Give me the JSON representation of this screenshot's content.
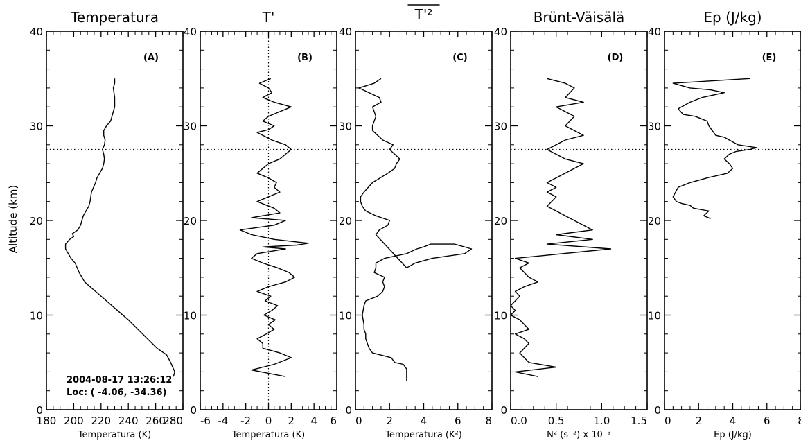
{
  "figure": {
    "ylabel": "Altitude (km)",
    "reference_altitude_km": 27.5
  },
  "chart_data": [
    {
      "type": "line",
      "title": "Temperatura",
      "panel_label": "(A)",
      "xlabel": "Temperatura (K)",
      "xlim": [
        180,
        280
      ],
      "xticks": [
        180,
        200,
        220,
        240,
        260,
        280
      ],
      "ylim": [
        0,
        40
      ],
      "yticks": [
        0,
        10,
        20,
        30,
        40
      ],
      "annotation": [
        "2004-08-17 13:26:12",
        "Loc: ( -4.06, -34.36)"
      ],
      "series": [
        {
          "x": [
            273.0,
            274.0,
            271.0,
            268.0,
            261.0,
            254.0,
            247.0,
            240.0,
            232.0,
            224.0,
            216.0,
            208.0,
            204.0,
            201.0,
            198.0,
            196.0,
            194.0,
            194.0,
            197.0,
            200.0,
            199.0,
            203.0,
            205.0,
            206.0,
            207.0,
            209.0,
            211.0,
            212.0,
            212.5,
            213.0,
            214.5,
            216.0,
            217.0,
            219.0,
            221.0,
            222.0,
            222.5,
            222.0,
            221.0,
            222.5,
            223.0,
            222.0,
            222.0,
            224.0,
            227.0,
            228.0,
            229.0,
            230.0,
            230.0,
            229.0,
            230.0,
            230.0
          ],
          "y": [
            3.5,
            4.0,
            5.0,
            5.8,
            6.5,
            7.5,
            8.5,
            9.5,
            10.5,
            11.5,
            12.5,
            13.5,
            14.5,
            15.5,
            16.0,
            16.5,
            17.0,
            17.5,
            18.0,
            18.3,
            18.6,
            19.0,
            19.5,
            20.0,
            20.5,
            21.0,
            21.5,
            22.0,
            22.5,
            23.0,
            23.5,
            24.0,
            24.5,
            25.0,
            25.5,
            26.0,
            26.5,
            27.0,
            27.5,
            28.0,
            28.5,
            29.0,
            29.5,
            30.0,
            30.5,
            31.0,
            31.5,
            32.0,
            33.0,
            34.0,
            34.5,
            35.0
          ]
        }
      ]
    },
    {
      "type": "line",
      "title": "T'",
      "panel_label": "(B)",
      "xlabel": "Temperatura (K)",
      "xlim": [
        -6,
        6
      ],
      "xticks": [
        -6,
        -4,
        -2,
        0,
        2,
        4,
        6
      ],
      "ylim": [
        0,
        40
      ],
      "yticks": [
        0,
        10,
        20,
        30,
        40
      ],
      "zero_line": true,
      "series": [
        {
          "x": [
            1.5,
            -1.5,
            0.5,
            2.0,
            1.0,
            -0.5,
            -0.5,
            -1.0,
            -0.2,
            0.5,
            0.0,
            0.6,
            -0.4,
            0.3,
            0.8,
            -0.3,
            0.2,
            -1.0,
            0.0,
            1.5,
            2.3,
            1.8,
            0.8,
            -0.5,
            -1.5,
            -1.0,
            1.5,
            -0.5,
            2.5,
            3.5,
            0.5,
            -1.5,
            -2.5,
            0.5,
            1.5,
            -1.5,
            1.0,
            0.5,
            -1.0,
            0.0,
            1.0,
            0.5,
            0.7,
            0.0,
            -1.0,
            0.0,
            1.0,
            1.5,
            2.0,
            1.5,
            0.3,
            -0.5,
            -1.0,
            0.0,
            0.5,
            -0.5,
            0.0,
            1.0,
            2.0,
            0.5,
            -0.5,
            0.3,
            0.0,
            -0.8,
            0.2
          ],
          "y": [
            3.5,
            4.2,
            4.8,
            5.5,
            6.0,
            6.5,
            7.0,
            7.5,
            8.0,
            8.5,
            9.0,
            9.5,
            10.0,
            10.5,
            11.0,
            11.5,
            12.0,
            12.5,
            13.0,
            13.5,
            14.0,
            14.5,
            15.0,
            15.5,
            16.0,
            16.5,
            17.0,
            17.2,
            17.4,
            17.6,
            18.0,
            18.5,
            19.0,
            19.5,
            20.0,
            20.3,
            20.8,
            21.3,
            22.0,
            22.5,
            23.0,
            23.5,
            24.0,
            24.5,
            25.0,
            26.0,
            26.5,
            27.0,
            27.5,
            28.0,
            28.5,
            29.0,
            29.3,
            29.6,
            30.0,
            30.5,
            31.0,
            31.5,
            32.0,
            32.5,
            33.0,
            33.5,
            34.0,
            34.5,
            35.0
          ]
        }
      ]
    },
    {
      "type": "line",
      "title": "T'²",
      "title_overline": true,
      "panel_label": "(C)",
      "xlabel": "Temperatura (K²)",
      "xlim": [
        0,
        8
      ],
      "xticks": [
        0,
        2,
        4,
        6,
        8
      ],
      "ylim": [
        0,
        40
      ],
      "yticks": [
        0,
        10,
        20,
        30,
        40
      ],
      "series": [
        {
          "x": [
            3.0,
            3.0,
            2.8,
            2.3,
            2.1,
            1.0,
            0.8,
            0.7,
            0.6,
            0.6,
            0.5,
            0.5,
            0.4,
            0.5,
            0.6,
            1.3,
            1.6,
            1.7,
            1.6,
            1.7,
            1.1,
            1.2,
            1.2,
            1.7,
            3.0,
            3.6,
            4.0,
            4.4,
            5.8,
            6.8,
            6.4,
            4.5,
            3.5,
            3.0,
            1.2,
            1.4,
            1.9,
            2.0,
            1.2,
            0.6,
            0.4,
            0.3,
            0.3,
            0.5,
            1.0,
            1.9,
            2.3,
            2.4,
            2.6,
            2.0,
            2.2,
            1.6,
            1.3,
            1.0,
            1.0,
            1.2,
            1.0,
            1.5,
            1.4,
            0.8,
            0.2,
            1.1,
            1.5
          ],
          "y": [
            3.0,
            4.3,
            4.8,
            5.0,
            5.5,
            6.0,
            6.5,
            7.0,
            7.5,
            8.0,
            8.5,
            9.0,
            10.0,
            11.0,
            11.5,
            12.0,
            12.5,
            13.0,
            13.5,
            14.0,
            14.5,
            15.0,
            15.5,
            16.0,
            16.5,
            17.0,
            17.2,
            17.5,
            17.5,
            17.0,
            16.5,
            16.0,
            15.5,
            15.0,
            18.5,
            19.0,
            19.5,
            20.0,
            20.5,
            21.0,
            21.5,
            22.0,
            22.5,
            23.0,
            24.0,
            25.0,
            25.5,
            26.0,
            26.5,
            27.5,
            28.0,
            28.5,
            29.0,
            29.5,
            30.0,
            31.0,
            32.0,
            32.5,
            33.0,
            33.5,
            34.0,
            34.5,
            35.0
          ]
        }
      ]
    },
    {
      "type": "line",
      "title": "Brünt-Väisälä",
      "panel_label": "(D)",
      "xlabel": "N² (s⁻²) x 10⁻³",
      "xlim": [
        0.0,
        1.5
      ],
      "xticks": [
        0.0,
        0.5,
        1.0,
        1.5
      ],
      "xtick_labels": [
        "0.0",
        "0.5",
        "1.0",
        "1.5"
      ],
      "ylim": [
        0,
        40
      ],
      "yticks": [
        0,
        10,
        20,
        30,
        40
      ],
      "series": [
        {
          "x": [
            0.3,
            0.05,
            0.5,
            0.2,
            0.1,
            0.2,
            0.15,
            0.05,
            0.2,
            0.1,
            0.0,
            0.05,
            0.0,
            0.05,
            0.1,
            0.05,
            0.15,
            0.3,
            0.2,
            0.1,
            0.2,
            0.05,
            1.1,
            0.4,
            0.9,
            0.5,
            0.9,
            0.6,
            0.5,
            0.4,
            0.5,
            0.4,
            0.5,
            0.4,
            0.6,
            0.8,
            0.6,
            0.4,
            0.5,
            0.6,
            0.8,
            0.6,
            0.7,
            0.6,
            0.5,
            0.8,
            0.6,
            0.7,
            0.6,
            0.4
          ],
          "y": [
            3.5,
            4.0,
            4.5,
            5.0,
            6.0,
            7.0,
            7.5,
            8.0,
            8.5,
            9.5,
            10.0,
            10.5,
            11.0,
            11.5,
            12.0,
            12.5,
            13.0,
            13.5,
            14.0,
            15.0,
            15.5,
            16.0,
            17.0,
            17.5,
            18.0,
            18.5,
            19.0,
            20.5,
            21.0,
            21.5,
            22.5,
            23.0,
            23.5,
            24.0,
            25.0,
            26.0,
            26.5,
            27.5,
            28.0,
            28.5,
            29.0,
            30.0,
            31.0,
            31.5,
            32.0,
            32.5,
            33.0,
            34.0,
            34.5,
            35.0
          ]
        }
      ]
    },
    {
      "type": "line",
      "title": "Ep (J/kg)",
      "panel_label": "(E)",
      "xlabel": "Ep (J/kg)",
      "xlim": [
        0,
        8
      ],
      "xticks": [
        0,
        2,
        4,
        6,
        8
      ],
      "ylim": [
        0,
        40
      ],
      "yticks": [
        0,
        10,
        20,
        30,
        40
      ],
      "series": [
        {
          "x": [
            2.7,
            2.3,
            2.6,
            1.7,
            1.5,
            1.0,
            0.7,
            0.5,
            0.8,
            1.5,
            2.5,
            3.7,
            4.0,
            3.8,
            3.5,
            3.8,
            4.2,
            5.0,
            5.4,
            4.3,
            3.8,
            3.5,
            3.0,
            2.6,
            2.5,
            1.8,
            1.1,
            0.8,
            1.5,
            2.2,
            3.5,
            2.7,
            1.5,
            0.5,
            5.0
          ],
          "y": [
            20.2,
            20.5,
            21.0,
            21.3,
            21.6,
            21.8,
            22.0,
            22.5,
            23.5,
            24.0,
            24.5,
            25.0,
            25.5,
            26.0,
            26.5,
            27.0,
            27.3,
            27.5,
            27.7,
            28.0,
            28.5,
            28.8,
            29.0,
            30.0,
            30.5,
            31.0,
            31.2,
            31.8,
            32.5,
            33.0,
            33.5,
            33.8,
            34.0,
            34.5,
            35.0
          ]
        }
      ]
    }
  ]
}
